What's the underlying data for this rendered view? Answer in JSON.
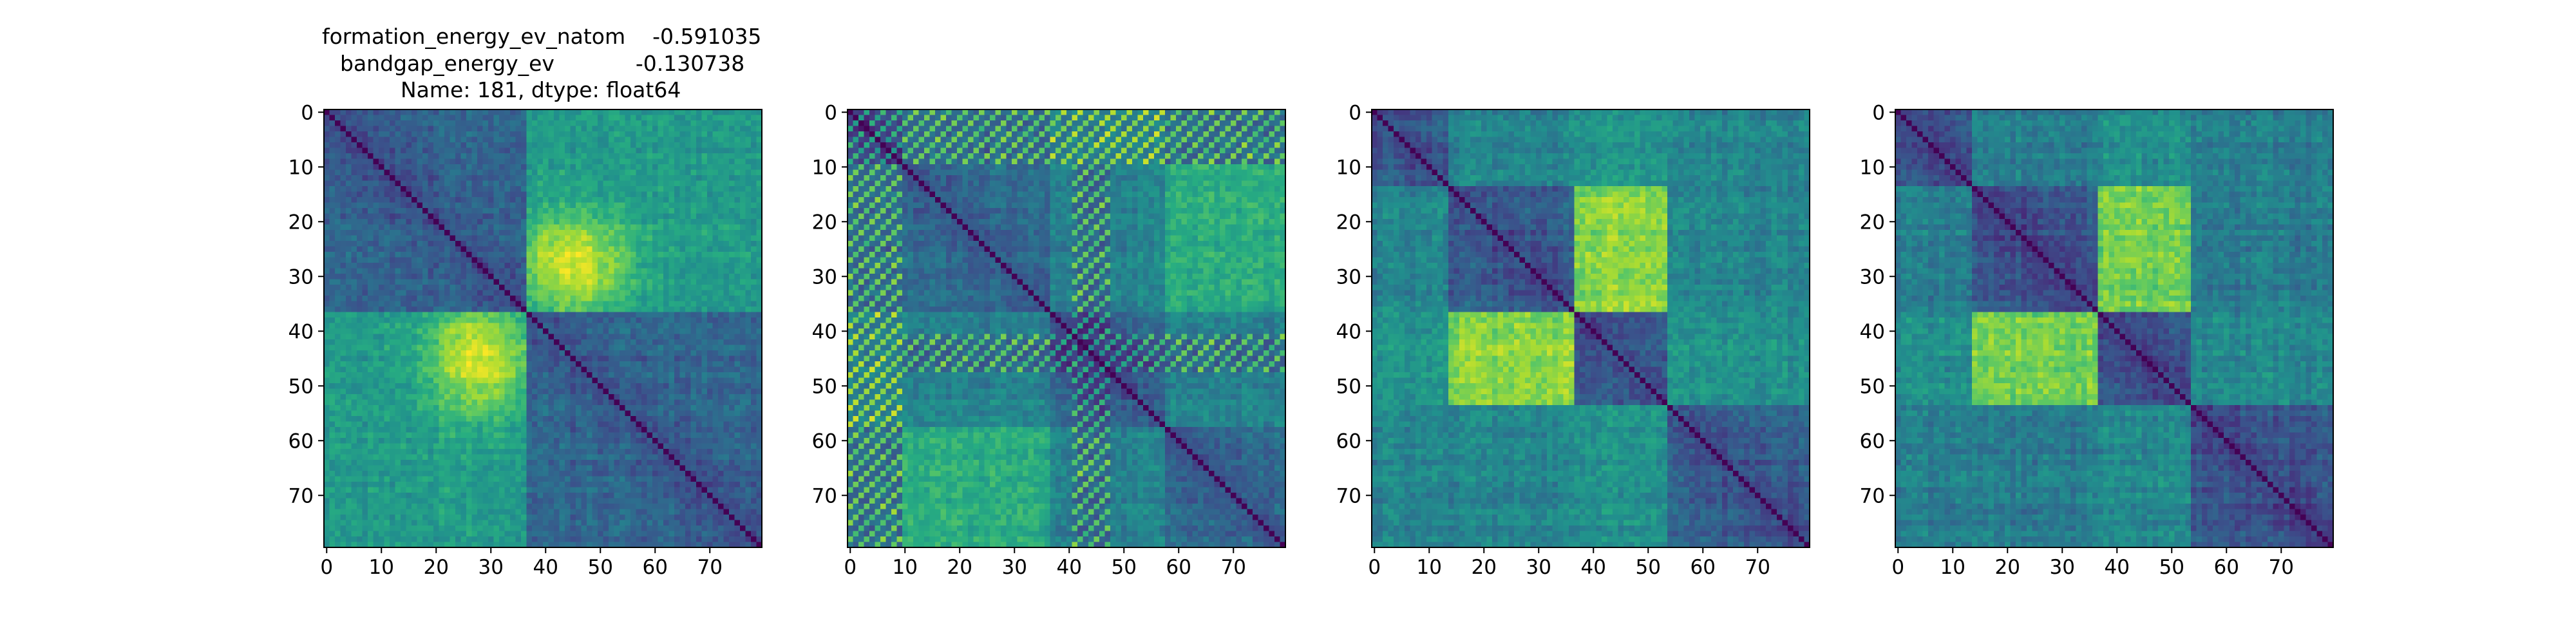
{
  "figure": {
    "title_lines": [
      "formation_energy_ev_natom    -0.591035",
      "bandgap_energy_ev            -0.130738",
      "Name: 181, dtype: float64"
    ]
  },
  "chart_data": [
    {
      "type": "heatmap",
      "colormap": "viridis",
      "size": 80,
      "xlim": [
        0,
        79
      ],
      "ylim": [
        79,
        0
      ],
      "xticks": [
        0,
        10,
        20,
        30,
        40,
        50,
        60,
        70
      ],
      "yticks": [
        0,
        10,
        20,
        30,
        40,
        50,
        60,
        70
      ],
      "block_boundaries": [
        37
      ],
      "grid": false
    },
    {
      "type": "heatmap",
      "colormap": "viridis",
      "size": 80,
      "xlim": [
        0,
        79
      ],
      "ylim": [
        79,
        0
      ],
      "xticks": [
        0,
        10,
        20,
        30,
        40,
        50,
        60,
        70
      ],
      "yticks": [
        0,
        10,
        20,
        30,
        40,
        50,
        60,
        70
      ],
      "block_boundaries": [
        10,
        37,
        58
      ],
      "grid": false
    },
    {
      "type": "heatmap",
      "colormap": "viridis",
      "size": 80,
      "xlim": [
        0,
        79
      ],
      "ylim": [
        79,
        0
      ],
      "xticks": [
        0,
        10,
        20,
        30,
        40,
        50,
        60,
        70
      ],
      "yticks": [
        0,
        10,
        20,
        30,
        40,
        50,
        60,
        70
      ],
      "block_boundaries": [
        14,
        37,
        54
      ],
      "grid": false
    },
    {
      "type": "heatmap",
      "colormap": "viridis",
      "size": 80,
      "xlim": [
        0,
        79
      ],
      "ylim": [
        79,
        0
      ],
      "xticks": [
        0,
        10,
        20,
        30,
        40,
        50,
        60,
        70
      ],
      "yticks": [
        0,
        10,
        20,
        30,
        40,
        50,
        60,
        70
      ],
      "block_boundaries": [
        14,
        37,
        54
      ],
      "grid": false
    }
  ]
}
